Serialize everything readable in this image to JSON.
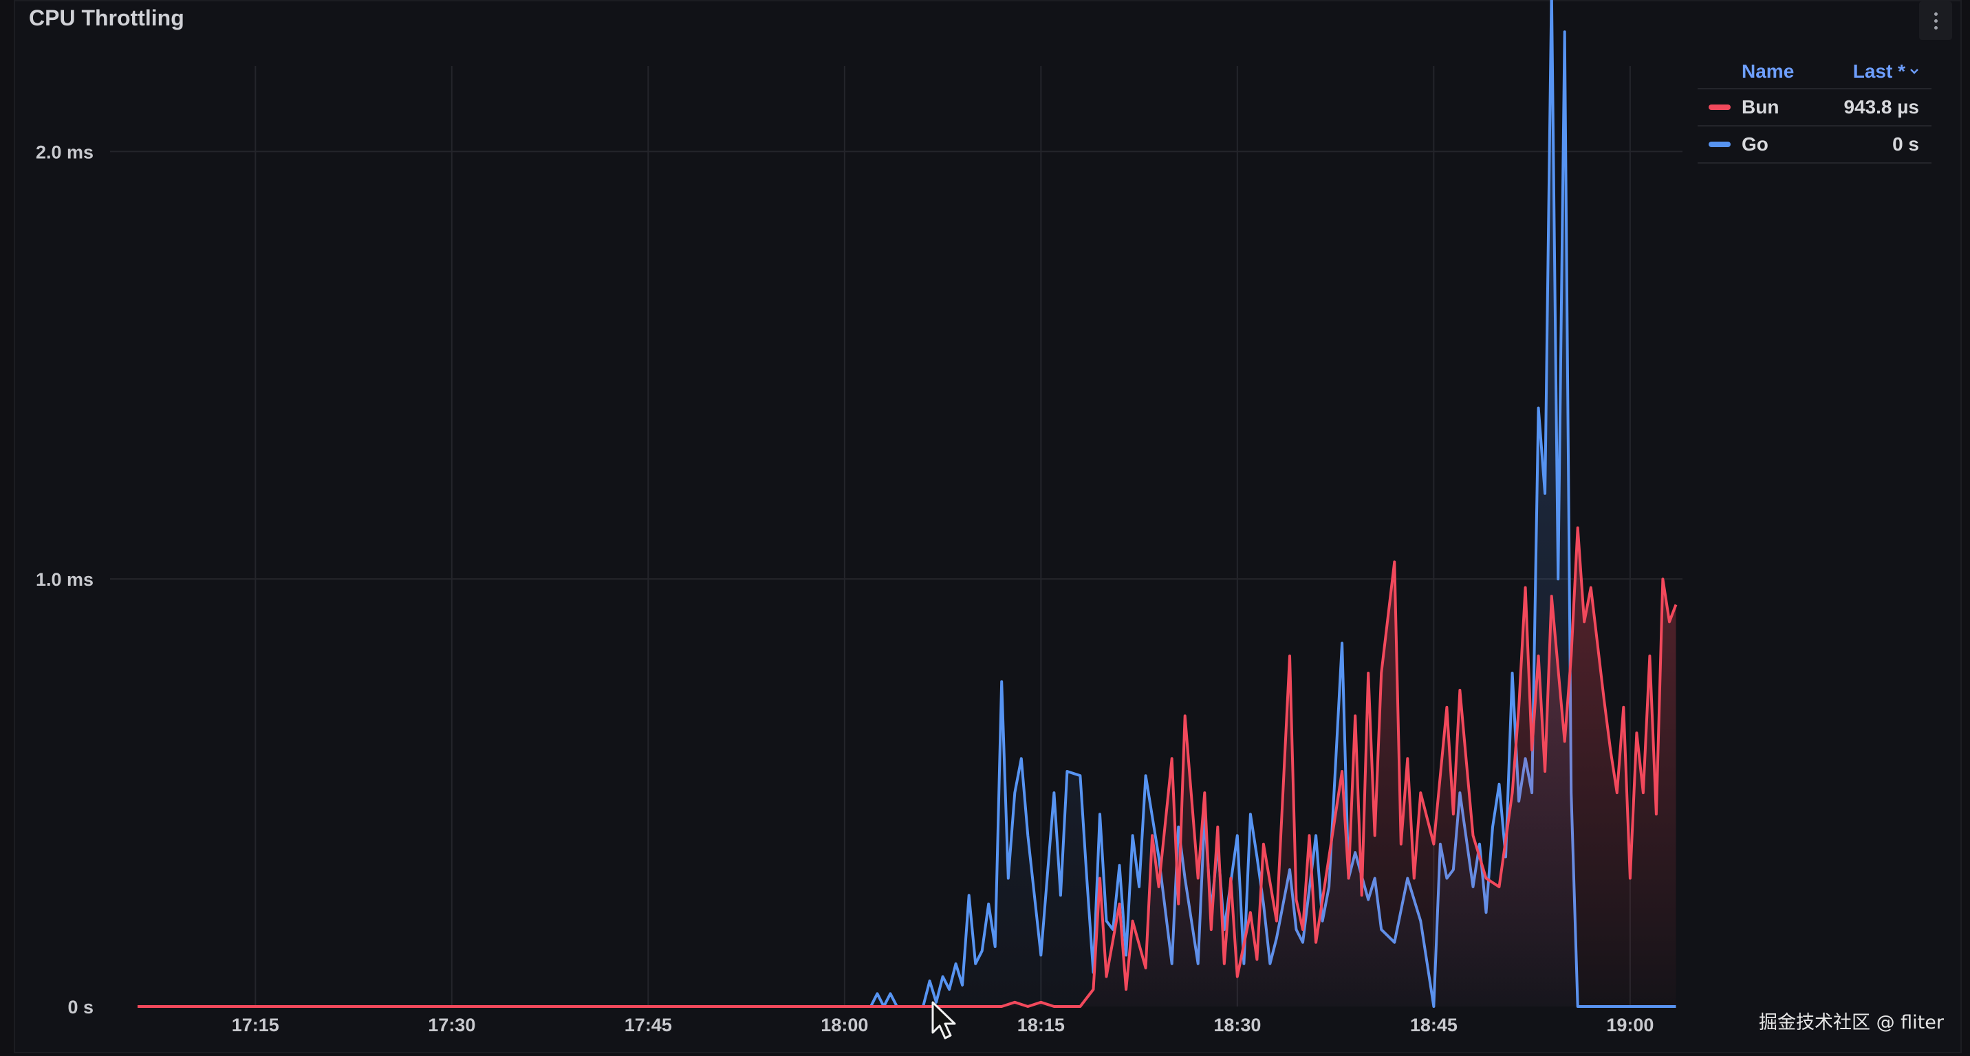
{
  "panel": {
    "title": "CPU Throttling",
    "menu_icon": "kebab-vertical-icon"
  },
  "legend": {
    "name_header": "Name",
    "value_header": "Last *",
    "sort_icon": "chevron-down-icon",
    "items": [
      {
        "name": "Bun",
        "value": "943.8 µs",
        "color": "#f2495c"
      },
      {
        "name": "Go",
        "value": "0 s",
        "color": "#5794f2"
      }
    ]
  },
  "watermark": "掘金技术社区 @ fliter",
  "chart_data": {
    "type": "line",
    "x_unit": "clock time (HH:MM)",
    "y_unit": "ms",
    "xlim": [
      "17:06",
      "19:04"
    ],
    "ylim": [
      0,
      2.2
    ],
    "y_ticks": [
      {
        "value": 0,
        "label": "0 s"
      },
      {
        "value": 1.0,
        "label": "1.0 ms"
      },
      {
        "value": 2.0,
        "label": "2.0 ms"
      }
    ],
    "x_ticks": [
      "17:15",
      "17:30",
      "17:45",
      "18:00",
      "18:15",
      "18:30",
      "18:45",
      "19:00"
    ],
    "grid": true,
    "legend_position": "right",
    "fill": "gradient-area",
    "series": [
      {
        "name": "Bun",
        "color": "#f2495c",
        "points": [
          [
            "17:06",
            0
          ],
          [
            "18:12",
            0
          ],
          [
            "18:13",
            0.01
          ],
          [
            "18:14",
            0
          ],
          [
            "18:15",
            0.01
          ],
          [
            "18:16",
            0
          ],
          [
            "18:18",
            0
          ],
          [
            "18:19",
            0.04
          ],
          [
            "18:19.5",
            0.3
          ],
          [
            "18:20",
            0.07
          ],
          [
            "18:21",
            0.24
          ],
          [
            "18:21.5",
            0.04
          ],
          [
            "18:22",
            0.2
          ],
          [
            "18:23",
            0.09
          ],
          [
            "18:23.5",
            0.4
          ],
          [
            "18:24",
            0.28
          ],
          [
            "18:25",
            0.58
          ],
          [
            "18:25.5",
            0.24
          ],
          [
            "18:26",
            0.68
          ],
          [
            "18:27",
            0.3
          ],
          [
            "18:27.5",
            0.5
          ],
          [
            "18:28",
            0.18
          ],
          [
            "18:28.5",
            0.42
          ],
          [
            "18:29",
            0.1
          ],
          [
            "18:29.5",
            0.3
          ],
          [
            "18:30",
            0.07
          ],
          [
            "18:31",
            0.22
          ],
          [
            "18:31.5",
            0.11
          ],
          [
            "18:32",
            0.38
          ],
          [
            "18:33",
            0.2
          ],
          [
            "18:34",
            0.82
          ],
          [
            "18:34.5",
            0.25
          ],
          [
            "18:35",
            0.18
          ],
          [
            "18:35.5",
            0.4
          ],
          [
            "18:36",
            0.15
          ],
          [
            "18:37",
            0.35
          ],
          [
            "18:38",
            0.55
          ],
          [
            "18:38.5",
            0.3
          ],
          [
            "18:39",
            0.68
          ],
          [
            "18:39.5",
            0.26
          ],
          [
            "18:40",
            0.78
          ],
          [
            "18:40.5",
            0.4
          ],
          [
            "18:41",
            0.78
          ],
          [
            "18:42",
            1.04
          ],
          [
            "18:42.5",
            0.38
          ],
          [
            "18:43",
            0.58
          ],
          [
            "18:43.5",
            0.3
          ],
          [
            "18:44",
            0.5
          ],
          [
            "18:45",
            0.38
          ],
          [
            "18:46",
            0.7
          ],
          [
            "18:46.5",
            0.45
          ],
          [
            "18:47",
            0.74
          ],
          [
            "18:48",
            0.4
          ],
          [
            "18:49",
            0.3
          ],
          [
            "18:50",
            0.28
          ],
          [
            "18:51",
            0.5
          ],
          [
            "18:51.5",
            0.7
          ],
          [
            "18:52",
            0.98
          ],
          [
            "18:52.5",
            0.6
          ],
          [
            "18:53",
            0.82
          ],
          [
            "18:53.5",
            0.55
          ],
          [
            "18:54",
            0.96
          ],
          [
            "18:55",
            0.62
          ],
          [
            "18:55.5",
            0.82
          ],
          [
            "18:56",
            1.12
          ],
          [
            "18:56.5",
            0.9
          ],
          [
            "18:57",
            0.98
          ],
          [
            "18:58",
            0.72
          ],
          [
            "18:58.5",
            0.6
          ],
          [
            "18:59",
            0.5
          ],
          [
            "18:59.5",
            0.7
          ],
          [
            "19:00",
            0.3
          ],
          [
            "19:00.5",
            0.64
          ],
          [
            "19:01",
            0.5
          ],
          [
            "19:01.5",
            0.82
          ],
          [
            "19:02",
            0.45
          ],
          [
            "19:02.5",
            1.0
          ],
          [
            "19:03",
            0.9
          ],
          [
            "19:03.5",
            0.94
          ]
        ]
      },
      {
        "name": "Go",
        "color": "#5794f2",
        "points": [
          [
            "17:06",
            0
          ],
          [
            "18:02",
            0
          ],
          [
            "18:02.5",
            0.03
          ],
          [
            "18:03",
            0
          ],
          [
            "18:03.5",
            0.03
          ],
          [
            "18:04",
            0
          ],
          [
            "18:06",
            0
          ],
          [
            "18:06.5",
            0.06
          ],
          [
            "18:07",
            0.01
          ],
          [
            "18:07.5",
            0.07
          ],
          [
            "18:08",
            0.04
          ],
          [
            "18:08.5",
            0.1
          ],
          [
            "18:09",
            0.05
          ],
          [
            "18:09.5",
            0.26
          ],
          [
            "18:10",
            0.1
          ],
          [
            "18:10.5",
            0.13
          ],
          [
            "18:11",
            0.24
          ],
          [
            "18:11.5",
            0.14
          ],
          [
            "18:12",
            0.76
          ],
          [
            "18:12.5",
            0.3
          ],
          [
            "18:13",
            0.5
          ],
          [
            "18:13.5",
            0.58
          ],
          [
            "18:14",
            0.4
          ],
          [
            "18:14.5",
            0.26
          ],
          [
            "18:15",
            0.12
          ],
          [
            "18:16",
            0.5
          ],
          [
            "18:16.5",
            0.26
          ],
          [
            "18:17",
            0.55
          ],
          [
            "18:18",
            0.54
          ],
          [
            "18:18.5",
            0.3
          ],
          [
            "18:19",
            0.08
          ],
          [
            "18:19.5",
            0.45
          ],
          [
            "18:20",
            0.2
          ],
          [
            "18:20.5",
            0.18
          ],
          [
            "18:21",
            0.33
          ],
          [
            "18:21.5",
            0.12
          ],
          [
            "18:22",
            0.4
          ],
          [
            "18:22.5",
            0.28
          ],
          [
            "18:23",
            0.54
          ],
          [
            "18:24",
            0.35
          ],
          [
            "18:25",
            0.1
          ],
          [
            "18:25.5",
            0.42
          ],
          [
            "18:26",
            0.3
          ],
          [
            "18:27",
            0.1
          ],
          [
            "18:27.5",
            0.45
          ],
          [
            "18:28",
            0.22
          ],
          [
            "18:28.5",
            0.38
          ],
          [
            "18:29",
            0.18
          ],
          [
            "18:30",
            0.4
          ],
          [
            "18:30.5",
            0.1
          ],
          [
            "18:31",
            0.45
          ],
          [
            "18:31.5",
            0.35
          ],
          [
            "18:32",
            0.24
          ],
          [
            "18:32.5",
            0.1
          ],
          [
            "18:33",
            0.16
          ],
          [
            "18:34",
            0.32
          ],
          [
            "18:34.5",
            0.18
          ],
          [
            "18:35",
            0.15
          ],
          [
            "18:36",
            0.4
          ],
          [
            "18:36.5",
            0.2
          ],
          [
            "18:37",
            0.28
          ],
          [
            "18:38",
            0.85
          ],
          [
            "18:38.5",
            0.3
          ],
          [
            "18:39",
            0.36
          ],
          [
            "18:40",
            0.25
          ],
          [
            "18:40.5",
            0.3
          ],
          [
            "18:41",
            0.18
          ],
          [
            "18:42",
            0.15
          ],
          [
            "18:43",
            0.3
          ],
          [
            "18:44",
            0.2
          ],
          [
            "18:45",
            0
          ],
          [
            "18:45.5",
            0.38
          ],
          [
            "18:46",
            0.3
          ],
          [
            "18:46.5",
            0.32
          ],
          [
            "18:47",
            0.5
          ],
          [
            "18:48",
            0.28
          ],
          [
            "18:48.5",
            0.38
          ],
          [
            "18:49",
            0.22
          ],
          [
            "18:49.5",
            0.42
          ],
          [
            "18:50",
            0.52
          ],
          [
            "18:50.5",
            0.35
          ],
          [
            "18:51",
            0.78
          ],
          [
            "18:51.5",
            0.48
          ],
          [
            "18:52",
            0.58
          ],
          [
            "18:52.5",
            0.5
          ],
          [
            "18:53",
            1.4
          ],
          [
            "18:53.5",
            1.2
          ],
          [
            "18:54",
            2.38
          ],
          [
            "18:54.5",
            1.0
          ],
          [
            "18:55",
            2.28
          ],
          [
            "18:55.5",
            0.5
          ],
          [
            "18:56",
            0
          ],
          [
            "19:03.5",
            0
          ]
        ]
      }
    ]
  }
}
